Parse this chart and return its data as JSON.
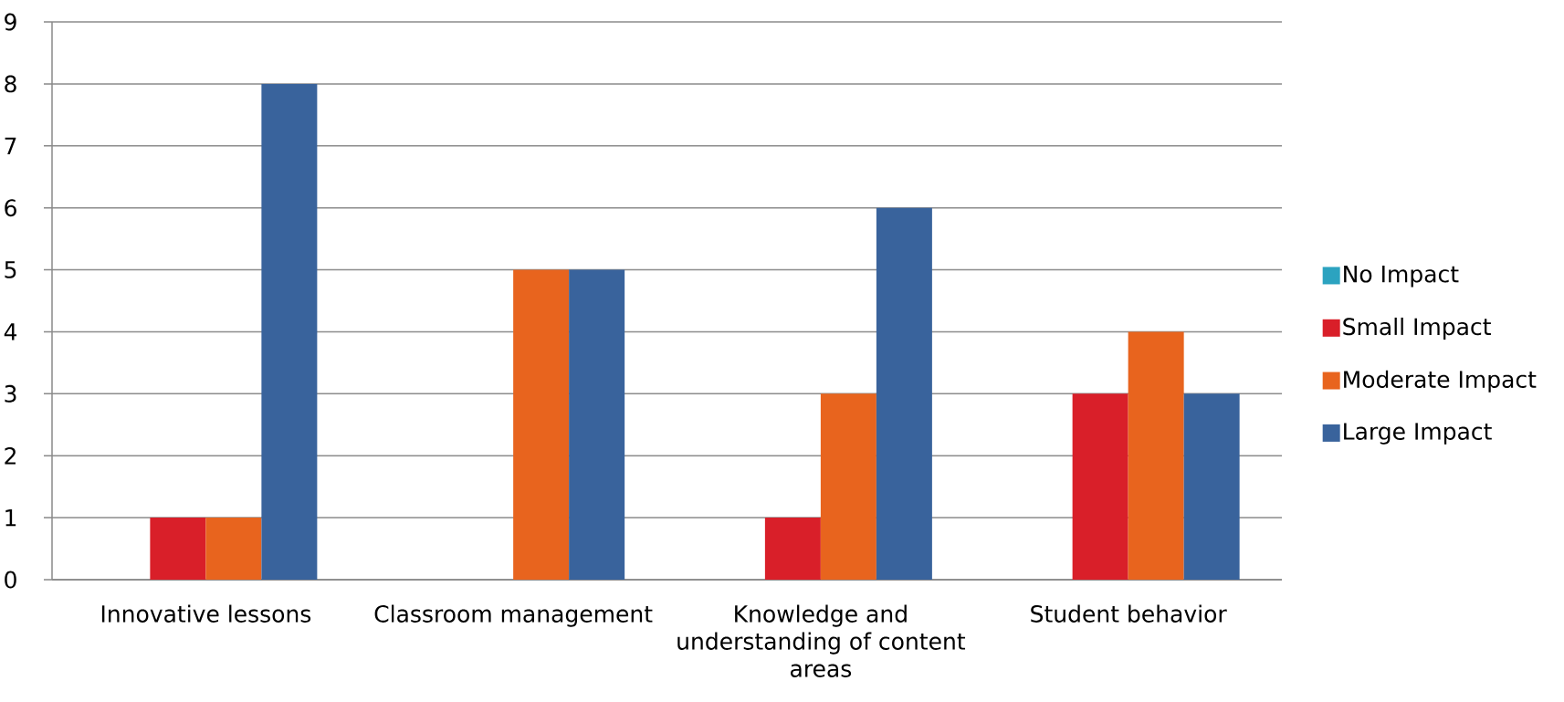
{
  "chart_data": {
    "type": "bar",
    "categories": [
      "Innovative lessons",
      "Classroom management",
      "Knowledge and understanding of content areas",
      "Student behavior"
    ],
    "series": [
      {
        "name": "No Impact",
        "color": "#2ca3c0",
        "values": [
          0,
          0,
          0,
          0
        ]
      },
      {
        "name": "Small Impact",
        "color": "#d91f29",
        "values": [
          1,
          0,
          1,
          3
        ]
      },
      {
        "name": "Moderate Impact",
        "color": "#e8641e",
        "values": [
          1,
          5,
          3,
          4
        ]
      },
      {
        "name": "Large Impact",
        "color": "#39639c",
        "values": [
          8,
          5,
          6,
          3
        ]
      }
    ],
    "ylim": [
      0,
      9
    ],
    "yticks": [
      0,
      1,
      2,
      3,
      4,
      5,
      6,
      7,
      8,
      9
    ],
    "grid": "y",
    "legend": "right"
  }
}
